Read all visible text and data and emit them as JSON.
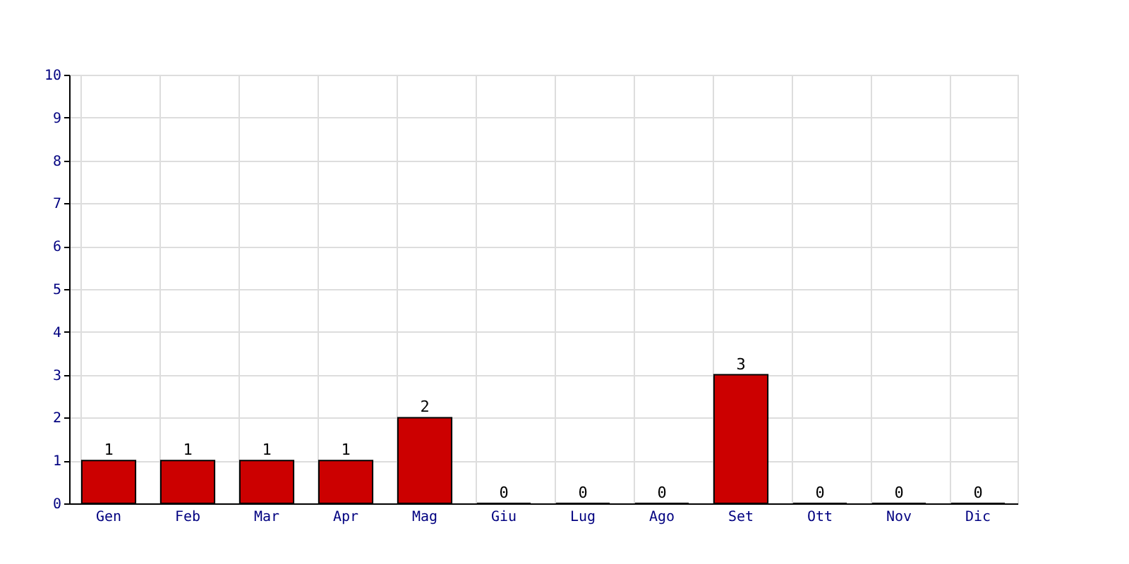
{
  "chart_data": {
    "type": "bar",
    "categories": [
      "Gen",
      "Feb",
      "Mar",
      "Apr",
      "Mag",
      "Giu",
      "Lug",
      "Ago",
      "Set",
      "Ott",
      "Nov",
      "Dic"
    ],
    "values": [
      1,
      1,
      1,
      1,
      2,
      0,
      0,
      0,
      3,
      0,
      0,
      0
    ],
    "color": "#cc0000",
    "ylim": [
      0,
      10
    ],
    "yticks": [
      0,
      1,
      2,
      3,
      4,
      5,
      6,
      7,
      8,
      9,
      10
    ],
    "grid": true,
    "data_labels": true
  }
}
